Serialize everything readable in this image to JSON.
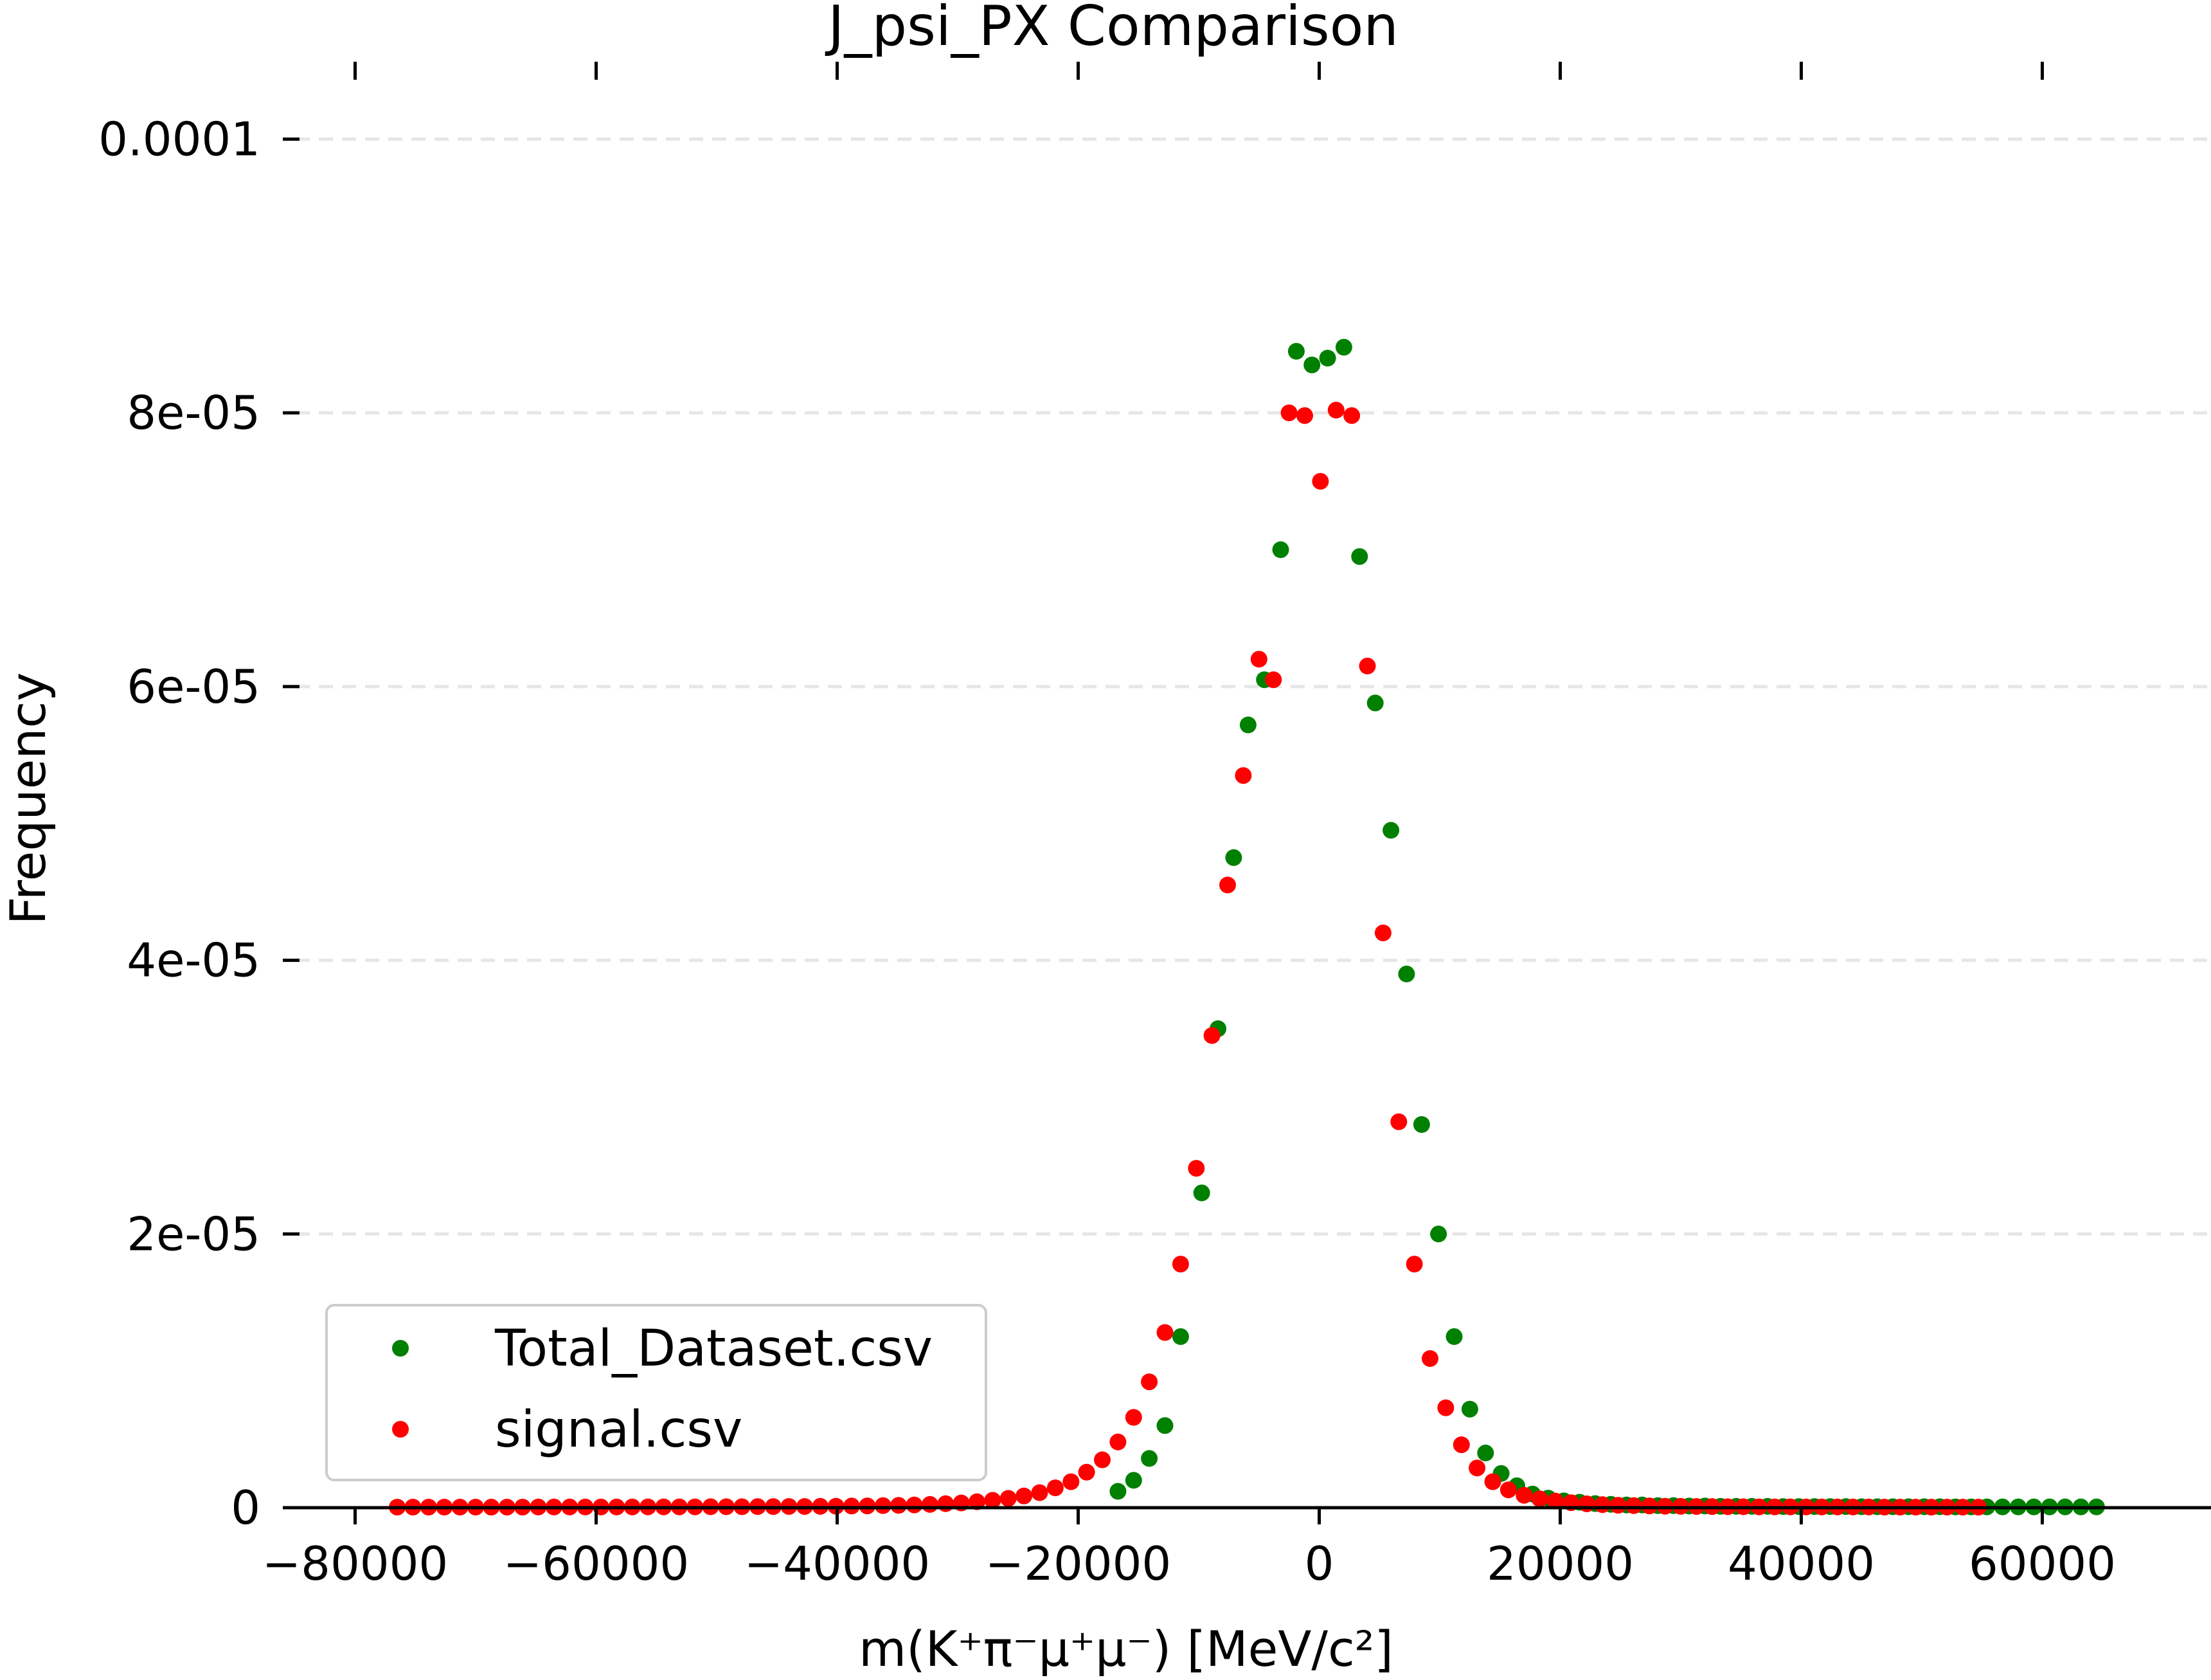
{
  "chart_data": {
    "type": "scatter",
    "title": "J_psi_PX Comparison",
    "xlabel": "m(K⁺π⁻μ⁺μ⁻) [MeV/c²]",
    "ylabel": "Frequency",
    "xlim": [
      -86000,
      74000
    ],
    "ylim": [
      0,
      0.000105
    ],
    "xticks": [
      -80000,
      -60000,
      -40000,
      -20000,
      0,
      20000,
      40000,
      60000
    ],
    "xtick_labels": [
      "−80000",
      "−60000",
      "−40000",
      "−20000",
      "0",
      "20000",
      "40000",
      "60000"
    ],
    "yticks": [
      0,
      2e-05,
      4e-05,
      6e-05,
      8e-05,
      0.0001
    ],
    "ytick_labels": [
      "0",
      "2e-05",
      "4e-05",
      "6e-05",
      "8e-05",
      "0.0001"
    ],
    "grid": "horizontal dashed",
    "legend_position": "lower-left",
    "series": [
      {
        "name": "Total_Dataset.csv",
        "color": "#008000",
        "x": [
          -16700,
          -15400,
          -14100,
          -12800,
          -11500,
          -9750,
          -8400,
          -7100,
          -5900,
          -4550,
          -3200,
          -1900,
          -600,
          700,
          2050,
          3350,
          4650,
          5950,
          7250,
          8500,
          9900,
          11200,
          12500,
          13800,
          15100,
          16400,
          17700,
          19000,
          20300,
          21600,
          22900,
          24200,
          25500,
          26800,
          28100,
          29400,
          30700,
          32000,
          33300,
          34600,
          35900,
          37200,
          38500,
          39800,
          41100,
          42400,
          43700,
          45000,
          46300,
          47600,
          48900,
          50200,
          51500,
          52800,
          54100,
          55400,
          56700,
          58000,
          59300,
          60600,
          61900,
          63200,
          64500
        ],
        "y": [
          1.2e-06,
          2e-06,
          3.6e-06,
          6e-06,
          1.25e-05,
          2.3e-05,
          3.5e-05,
          4.75e-05,
          5.72e-05,
          6.05e-05,
          7e-05,
          8.45e-05,
          8.35e-05,
          8.4e-05,
          8.48e-05,
          6.95e-05,
          5.88e-05,
          4.95e-05,
          3.9e-05,
          2.8e-05,
          2e-05,
          1.25e-05,
          7.2e-06,
          4e-06,
          2.5e-06,
          1.6e-06,
          1e-06,
          7e-07,
          5e-07,
          4e-07,
          3e-07,
          2.5e-07,
          2e-07,
          2e-07,
          1.5e-07,
          1.5e-07,
          1.2e-07,
          1.2e-07,
          1e-07,
          1e-07,
          1e-07,
          1e-07,
          8e-08,
          8e-08,
          8e-08,
          8e-08,
          8e-08,
          7e-08,
          7e-08,
          7e-08,
          7e-08,
          7e-08,
          7e-08,
          6e-08,
          6e-08,
          6e-08,
          6e-08,
          6e-08,
          6e-08,
          6e-08,
          6e-08,
          6e-08,
          6e-08
        ]
      },
      {
        "name": "signal.csv",
        "color": "#ff0000",
        "x": [
          -76500,
          -75200,
          -73900,
          -72600,
          -71300,
          -70000,
          -68700,
          -67400,
          -66100,
          -64800,
          -63500,
          -62200,
          -60900,
          -59600,
          -58300,
          -57000,
          -55700,
          -54400,
          -53100,
          -51800,
          -50500,
          -49200,
          -47900,
          -46600,
          -45300,
          -44000,
          -42700,
          -41400,
          -40100,
          -38800,
          -37500,
          -36200,
          -34900,
          -33600,
          -32300,
          -31000,
          -29700,
          -28400,
          -27100,
          -25800,
          -24500,
          -23200,
          -21900,
          -20600,
          -19300,
          -18000,
          -16700,
          -15400,
          -14100,
          -12800,
          -11500,
          -10200,
          -8900,
          -7600,
          -6300,
          -5000,
          -3800,
          -2500,
          -1200,
          100,
          1400,
          2700,
          4000,
          5300,
          6600,
          7900,
          9200,
          10500,
          11800,
          13100,
          14400,
          15700,
          17000,
          18300,
          19600,
          20900,
          22200,
          23500,
          24800,
          26100,
          27400,
          28700,
          30000,
          31300,
          32600,
          33900,
          35200,
          36500,
          37800,
          39100,
          40400,
          41700,
          43000,
          44300,
          45600,
          46900,
          48200,
          49500,
          50800,
          52100,
          53400,
          54700
        ],
        "y": [
          4e-08,
          4e-08,
          4e-08,
          4e-08,
          4e-08,
          4e-08,
          4e-08,
          4e-08,
          4e-08,
          5e-08,
          5e-08,
          5e-08,
          5e-08,
          5e-08,
          5e-08,
          5e-08,
          6e-08,
          6e-08,
          6e-08,
          6e-08,
          7e-08,
          7e-08,
          7e-08,
          8e-08,
          8e-08,
          9e-08,
          9e-08,
          1e-07,
          1.1e-07,
          1.2e-07,
          1.3e-07,
          1.5e-07,
          1.7e-07,
          2e-07,
          2.4e-07,
          2.9e-07,
          3.5e-07,
          4.3e-07,
          5.4e-07,
          6.8e-07,
          8.6e-07,
          1.1e-06,
          1.45e-06,
          1.9e-06,
          2.6e-06,
          3.5e-06,
          4.8e-06,
          6.6e-06,
          9.2e-06,
          1.28e-05,
          1.78e-05,
          2.48e-05,
          3.45e-05,
          4.55e-05,
          5.35e-05,
          6.2e-05,
          6.05e-05,
          8e-05,
          7.98e-05,
          7.5e-05,
          8.02e-05,
          7.98e-05,
          6.15e-05,
          4.2e-05,
          2.82e-05,
          1.78e-05,
          1.09e-05,
          7.3e-06,
          4.6e-06,
          2.9e-06,
          1.9e-06,
          1.3e-06,
          9e-07,
          6.5e-07,
          4.8e-07,
          3.6e-07,
          2.8e-07,
          2.2e-07,
          1.8e-07,
          1.5e-07,
          1.3e-07,
          1.1e-07,
          1e-07,
          9e-08,
          8e-08,
          7e-08,
          7e-08,
          6e-08,
          6e-08,
          6e-08,
          5e-08,
          5e-08,
          5e-08,
          5e-08,
          5e-08,
          4e-08,
          4e-08,
          4e-08,
          4e-08,
          4e-08,
          4e-08,
          4e-08
        ]
      }
    ]
  }
}
